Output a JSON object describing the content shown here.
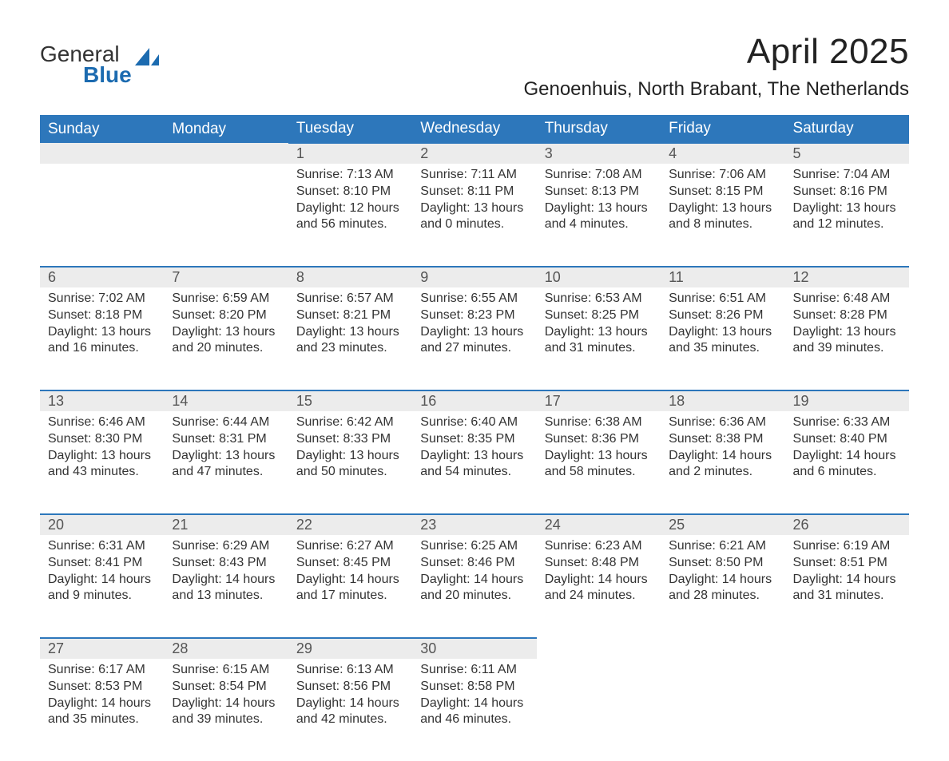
{
  "logo": {
    "text_general": "General",
    "text_blue": "Blue"
  },
  "title": "April 2025",
  "subtitle": "Genoenhuis, North Brabant, The Netherlands",
  "colors": {
    "header_bg": "#2d77bb",
    "header_text": "#ffffff",
    "daynum_bg": "#ececec",
    "daynum_border": "#2d77bb",
    "body_text": "#333333",
    "logo_blue": "#1c6bb0",
    "page_bg": "#ffffff"
  },
  "weekdays": [
    "Sunday",
    "Monday",
    "Tuesday",
    "Wednesday",
    "Thursday",
    "Friday",
    "Saturday"
  ],
  "weeks": [
    [
      null,
      null,
      {
        "day": "1",
        "sunrise": "7:13 AM",
        "sunset": "8:10 PM",
        "daylight": "12 hours and 56 minutes."
      },
      {
        "day": "2",
        "sunrise": "7:11 AM",
        "sunset": "8:11 PM",
        "daylight": "13 hours and 0 minutes."
      },
      {
        "day": "3",
        "sunrise": "7:08 AM",
        "sunset": "8:13 PM",
        "daylight": "13 hours and 4 minutes."
      },
      {
        "day": "4",
        "sunrise": "7:06 AM",
        "sunset": "8:15 PM",
        "daylight": "13 hours and 8 minutes."
      },
      {
        "day": "5",
        "sunrise": "7:04 AM",
        "sunset": "8:16 PM",
        "daylight": "13 hours and 12 minutes."
      }
    ],
    [
      {
        "day": "6",
        "sunrise": "7:02 AM",
        "sunset": "8:18 PM",
        "daylight": "13 hours and 16 minutes."
      },
      {
        "day": "7",
        "sunrise": "6:59 AM",
        "sunset": "8:20 PM",
        "daylight": "13 hours and 20 minutes."
      },
      {
        "day": "8",
        "sunrise": "6:57 AM",
        "sunset": "8:21 PM",
        "daylight": "13 hours and 23 minutes."
      },
      {
        "day": "9",
        "sunrise": "6:55 AM",
        "sunset": "8:23 PM",
        "daylight": "13 hours and 27 minutes."
      },
      {
        "day": "10",
        "sunrise": "6:53 AM",
        "sunset": "8:25 PM",
        "daylight": "13 hours and 31 minutes."
      },
      {
        "day": "11",
        "sunrise": "6:51 AM",
        "sunset": "8:26 PM",
        "daylight": "13 hours and 35 minutes."
      },
      {
        "day": "12",
        "sunrise": "6:48 AM",
        "sunset": "8:28 PM",
        "daylight": "13 hours and 39 minutes."
      }
    ],
    [
      {
        "day": "13",
        "sunrise": "6:46 AM",
        "sunset": "8:30 PM",
        "daylight": "13 hours and 43 minutes."
      },
      {
        "day": "14",
        "sunrise": "6:44 AM",
        "sunset": "8:31 PM",
        "daylight": "13 hours and 47 minutes."
      },
      {
        "day": "15",
        "sunrise": "6:42 AM",
        "sunset": "8:33 PM",
        "daylight": "13 hours and 50 minutes."
      },
      {
        "day": "16",
        "sunrise": "6:40 AM",
        "sunset": "8:35 PM",
        "daylight": "13 hours and 54 minutes."
      },
      {
        "day": "17",
        "sunrise": "6:38 AM",
        "sunset": "8:36 PM",
        "daylight": "13 hours and 58 minutes."
      },
      {
        "day": "18",
        "sunrise": "6:36 AM",
        "sunset": "8:38 PM",
        "daylight": "14 hours and 2 minutes."
      },
      {
        "day": "19",
        "sunrise": "6:33 AM",
        "sunset": "8:40 PM",
        "daylight": "14 hours and 6 minutes."
      }
    ],
    [
      {
        "day": "20",
        "sunrise": "6:31 AM",
        "sunset": "8:41 PM",
        "daylight": "14 hours and 9 minutes."
      },
      {
        "day": "21",
        "sunrise": "6:29 AM",
        "sunset": "8:43 PM",
        "daylight": "14 hours and 13 minutes."
      },
      {
        "day": "22",
        "sunrise": "6:27 AM",
        "sunset": "8:45 PM",
        "daylight": "14 hours and 17 minutes."
      },
      {
        "day": "23",
        "sunrise": "6:25 AM",
        "sunset": "8:46 PM",
        "daylight": "14 hours and 20 minutes."
      },
      {
        "day": "24",
        "sunrise": "6:23 AM",
        "sunset": "8:48 PM",
        "daylight": "14 hours and 24 minutes."
      },
      {
        "day": "25",
        "sunrise": "6:21 AM",
        "sunset": "8:50 PM",
        "daylight": "14 hours and 28 minutes."
      },
      {
        "day": "26",
        "sunrise": "6:19 AM",
        "sunset": "8:51 PM",
        "daylight": "14 hours and 31 minutes."
      }
    ],
    [
      {
        "day": "27",
        "sunrise": "6:17 AM",
        "sunset": "8:53 PM",
        "daylight": "14 hours and 35 minutes."
      },
      {
        "day": "28",
        "sunrise": "6:15 AM",
        "sunset": "8:54 PM",
        "daylight": "14 hours and 39 minutes."
      },
      {
        "day": "29",
        "sunrise": "6:13 AM",
        "sunset": "8:56 PM",
        "daylight": "14 hours and 42 minutes."
      },
      {
        "day": "30",
        "sunrise": "6:11 AM",
        "sunset": "8:58 PM",
        "daylight": "14 hours and 46 minutes."
      },
      null,
      null,
      null
    ]
  ],
  "labels": {
    "sunrise": "Sunrise: ",
    "sunset": "Sunset: ",
    "daylight": "Daylight: "
  }
}
